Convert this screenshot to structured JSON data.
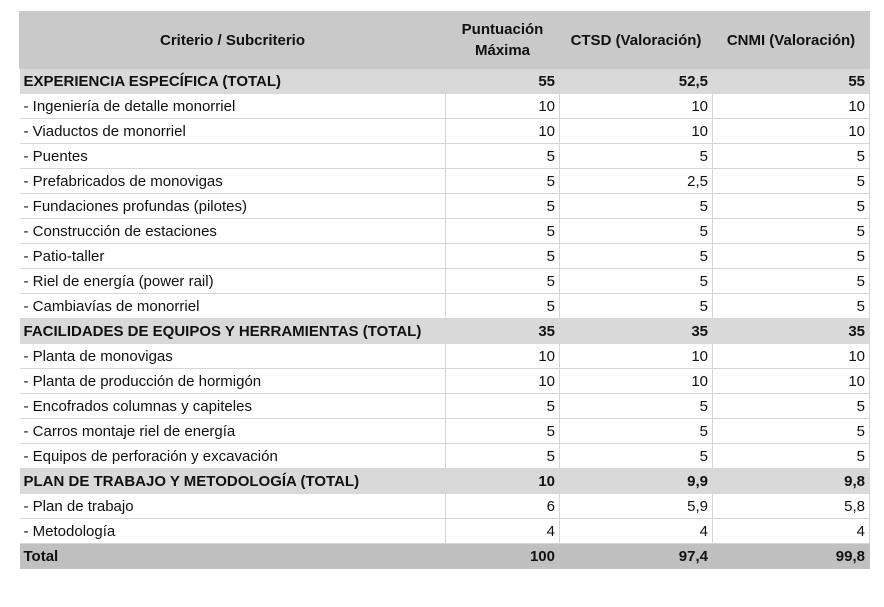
{
  "headers": [
    "Criterio / Subcriterio",
    "Puntuación Máxima",
    "CTSD (Valoración)",
    "CNMI (Valoración)"
  ],
  "rows": [
    {
      "type": "section",
      "label": "EXPERIENCIA ESPECÍFICA (TOTAL)",
      "max": "55",
      "ctsd": "52,5",
      "cnmi": "55"
    },
    {
      "type": "item",
      "label": "- Ingeniería de detalle monorriel",
      "max": "10",
      "ctsd": "10",
      "cnmi": "10"
    },
    {
      "type": "item",
      "label": "- Viaductos de monorriel",
      "max": "10",
      "ctsd": "10",
      "cnmi": "10"
    },
    {
      "type": "item",
      "label": "- Puentes",
      "max": "5",
      "ctsd": "5",
      "cnmi": "5"
    },
    {
      "type": "item",
      "label": "- Prefabricados de monovigas",
      "max": "5",
      "ctsd": "2,5",
      "cnmi": "5"
    },
    {
      "type": "item",
      "label": "- Fundaciones profundas (pilotes)",
      "max": "5",
      "ctsd": "5",
      "cnmi": "5"
    },
    {
      "type": "item",
      "label": "- Construcción de estaciones",
      "max": "5",
      "ctsd": "5",
      "cnmi": "5"
    },
    {
      "type": "item",
      "label": "- Patio-taller",
      "max": "5",
      "ctsd": "5",
      "cnmi": "5"
    },
    {
      "type": "item",
      "label": "- Riel de energía (power rail)",
      "max": "5",
      "ctsd": "5",
      "cnmi": "5"
    },
    {
      "type": "item",
      "label": "- Cambiavías de monorriel",
      "max": "5",
      "ctsd": "5",
      "cnmi": "5"
    },
    {
      "type": "section",
      "label": "FACILIDADES DE EQUIPOS Y HERRAMIENTAS (TOTAL)",
      "max": "35",
      "ctsd": "35",
      "cnmi": "35"
    },
    {
      "type": "item",
      "label": "- Planta de monovigas",
      "max": "10",
      "ctsd": "10",
      "cnmi": "10"
    },
    {
      "type": "item",
      "label": "- Planta de producción de hormigón",
      "max": "10",
      "ctsd": "10",
      "cnmi": "10"
    },
    {
      "type": "item",
      "label": "- Encofrados columnas y capiteles",
      "max": "5",
      "ctsd": "5",
      "cnmi": "5"
    },
    {
      "type": "item",
      "label": "- Carros montaje riel de energía",
      "max": "5",
      "ctsd": "5",
      "cnmi": "5"
    },
    {
      "type": "item",
      "label": "- Equipos de perforación y excavación",
      "max": "5",
      "ctsd": "5",
      "cnmi": "5"
    },
    {
      "type": "section",
      "label": "PLAN DE TRABAJO Y METODOLOGÍA (TOTAL)",
      "max": "10",
      "ctsd": "9,9",
      "cnmi": "9,8"
    },
    {
      "type": "item",
      "label": "- Plan de trabajo",
      "max": "6",
      "ctsd": "5,9",
      "cnmi": "5,8"
    },
    {
      "type": "item",
      "label": "- Metodología",
      "max": "4",
      "ctsd": "4",
      "cnmi": "4"
    },
    {
      "type": "total",
      "label": "Total",
      "max": "100",
      "ctsd": "97,4",
      "cnmi": "99,8"
    }
  ]
}
